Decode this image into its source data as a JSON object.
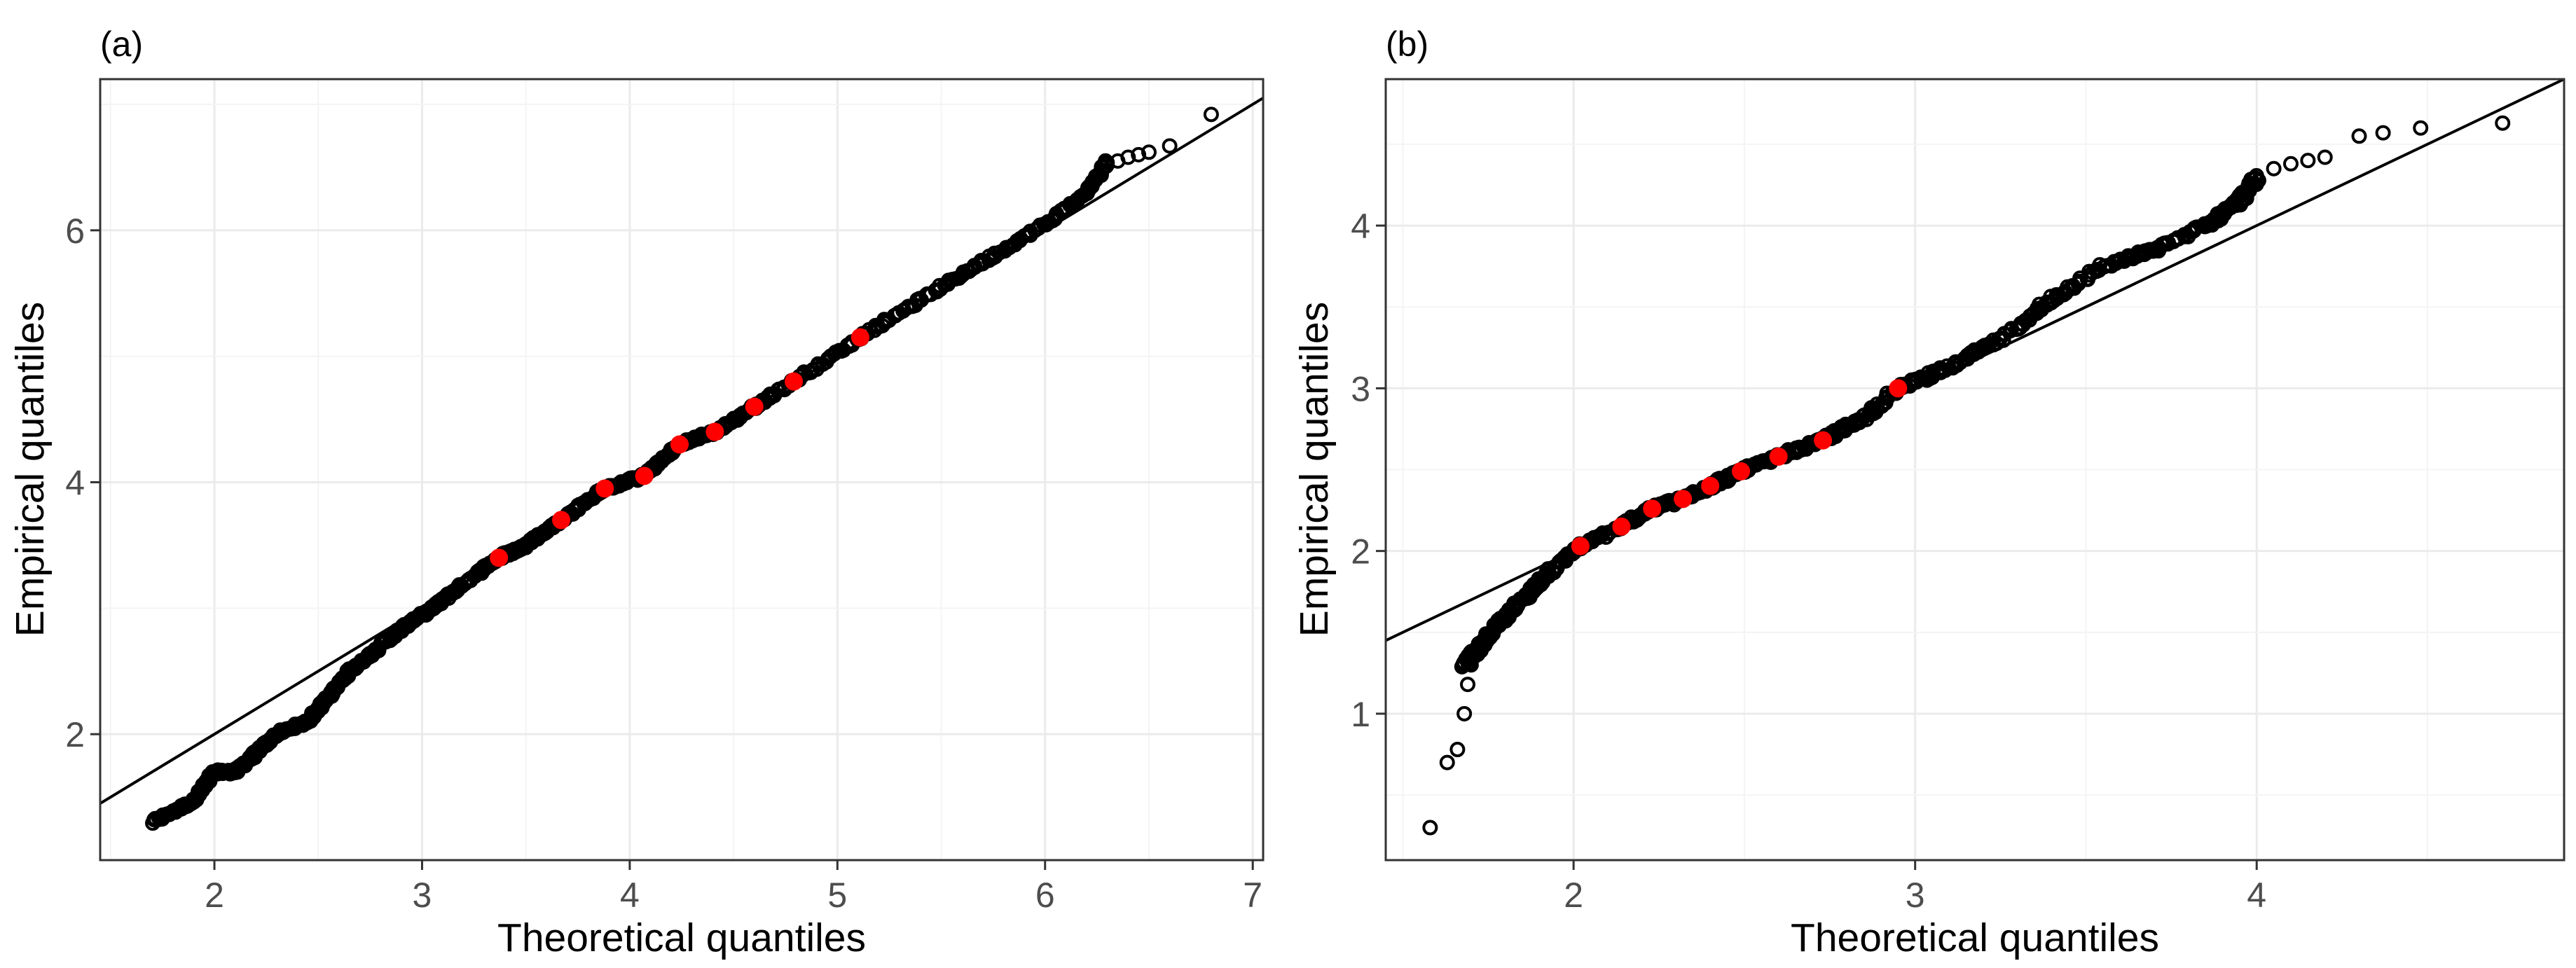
{
  "chart_data": [
    {
      "panel_label": "(a)",
      "type": "scatter",
      "title": "",
      "xlabel": "Theoretical quantiles",
      "ylabel": "Empirical quantiles",
      "xlim": [
        1.45,
        7.05
      ],
      "ylim": [
        1.0,
        7.2
      ],
      "x_ticks": [
        2,
        3,
        4,
        5,
        6,
        7
      ],
      "y_ticks": [
        2,
        4,
        6
      ],
      "grid": true,
      "reference_line": {
        "x": [
          1.45,
          7.05
        ],
        "y": [
          1.45,
          7.05
        ]
      },
      "highlighted_points": {
        "color": "#ff0000",
        "x": [
          3.37,
          3.67,
          3.88,
          4.07,
          4.24,
          4.41,
          4.6,
          4.79,
          5.11
        ],
        "y": [
          3.4,
          3.7,
          3.95,
          4.05,
          4.3,
          4.4,
          4.6,
          4.8,
          5.15
        ]
      },
      "sample_curve": [
        [
          1.7,
          1.3
        ],
        [
          1.9,
          1.47
        ],
        [
          2.0,
          1.7
        ],
        [
          2.1,
          1.7
        ],
        [
          2.2,
          1.85
        ],
        [
          2.3,
          2.0
        ],
        [
          2.45,
          2.1
        ],
        [
          2.55,
          2.3
        ],
        [
          2.65,
          2.5
        ],
        [
          2.8,
          2.7
        ],
        [
          2.95,
          2.9
        ],
        [
          3.05,
          3.0
        ],
        [
          3.2,
          3.2
        ],
        [
          3.37,
          3.4
        ],
        [
          3.5,
          3.5
        ],
        [
          3.67,
          3.7
        ],
        [
          3.88,
          3.95
        ],
        [
          4.07,
          4.05
        ],
        [
          4.24,
          4.3
        ],
        [
          4.41,
          4.4
        ],
        [
          4.6,
          4.6
        ],
        [
          4.79,
          4.8
        ],
        [
          5.11,
          5.15
        ],
        [
          5.4,
          5.45
        ],
        [
          5.7,
          5.75
        ],
        [
          6.0,
          6.05
        ],
        [
          6.2,
          6.3
        ],
        [
          6.3,
          6.55
        ]
      ],
      "sample_tail": [
        [
          6.35,
          6.55
        ],
        [
          6.4,
          6.58
        ],
        [
          6.45,
          6.6
        ],
        [
          6.5,
          6.62
        ],
        [
          6.6,
          6.67
        ],
        [
          6.8,
          6.92
        ]
      ]
    },
    {
      "panel_label": "(b)",
      "type": "scatter",
      "title": "",
      "xlabel": "Theoretical quantiles",
      "ylabel": "Empirical quantiles",
      "xlim": [
        1.45,
        4.9
      ],
      "ylim": [
        0.1,
        4.9
      ],
      "x_ticks": [
        2,
        3,
        4
      ],
      "y_ticks": [
        1,
        2,
        3,
        4
      ],
      "grid": true,
      "reference_line": {
        "x": [
          1.45,
          4.9
        ],
        "y": [
          1.45,
          4.9
        ]
      },
      "highlighted_points": {
        "color": "#ff0000",
        "x": [
          2.02,
          2.14,
          2.23,
          2.32,
          2.4,
          2.49,
          2.6,
          2.73,
          2.95
        ],
        "y": [
          2.03,
          2.15,
          2.26,
          2.32,
          2.4,
          2.49,
          2.58,
          2.68,
          3.0
        ]
      },
      "sample_curve": [
        [
          1.68,
          1.3
        ],
        [
          1.72,
          1.4
        ],
        [
          1.78,
          1.55
        ],
        [
          1.85,
          1.7
        ],
        [
          1.92,
          1.85
        ],
        [
          2.02,
          2.03
        ],
        [
          2.14,
          2.15
        ],
        [
          2.23,
          2.26
        ],
        [
          2.32,
          2.32
        ],
        [
          2.4,
          2.4
        ],
        [
          2.49,
          2.49
        ],
        [
          2.6,
          2.58
        ],
        [
          2.73,
          2.68
        ],
        [
          2.85,
          2.82
        ],
        [
          2.95,
          3.0
        ],
        [
          3.1,
          3.13
        ],
        [
          3.25,
          3.3
        ],
        [
          3.4,
          3.55
        ],
        [
          3.55,
          3.75
        ],
        [
          3.7,
          3.85
        ],
        [
          3.85,
          4.0
        ],
        [
          3.95,
          4.15
        ],
        [
          4.0,
          4.3
        ]
      ],
      "sample_tail": [
        [
          1.58,
          0.3
        ],
        [
          1.63,
          0.7
        ],
        [
          1.66,
          0.78
        ],
        [
          1.68,
          1.0
        ],
        [
          1.69,
          1.18
        ],
        [
          1.7,
          1.3
        ],
        [
          4.05,
          4.35
        ],
        [
          4.1,
          4.38
        ],
        [
          4.15,
          4.4
        ],
        [
          4.2,
          4.42
        ],
        [
          4.3,
          4.55
        ],
        [
          4.37,
          4.57
        ],
        [
          4.48,
          4.6
        ],
        [
          4.72,
          4.63
        ]
      ]
    }
  ]
}
